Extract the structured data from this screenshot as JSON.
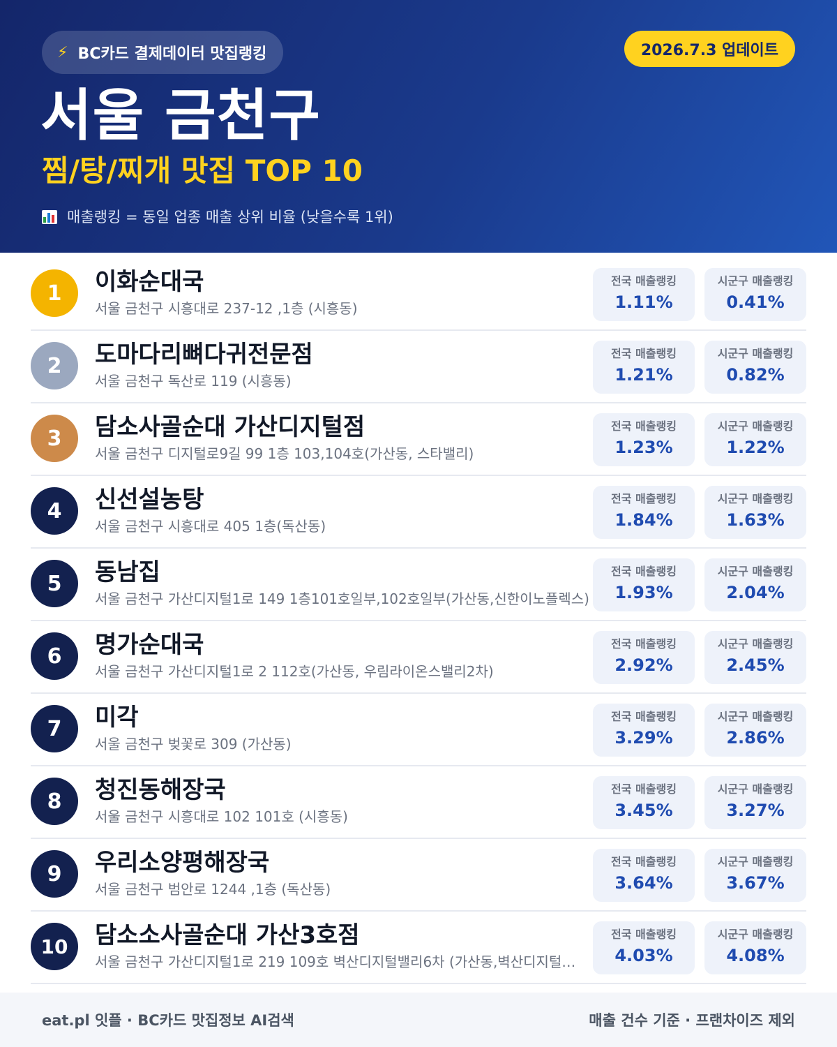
{
  "header": {
    "source_pill": "BC카드 결제데이터 맛집랭킹",
    "bolt_icon": "lightning-icon",
    "update": "2026.7.3 업데이트",
    "region": "서울 금천구",
    "subtitle": "찜/탕/찌개 맛집 TOP 10",
    "legend": "매출랭킹 = 동일 업종 매출 상위 비율 (낮을수록 1위)",
    "legend_icon": "bar-chart-icon"
  },
  "colors": {
    "accent_yellow": "#ffd21f",
    "navy": "#13214f",
    "gold": "#f4b400",
    "silver": "#9ba8bf",
    "bronze": "#cd8a4a",
    "value_blue": "#1f4bb0"
  },
  "restaurants": [
    {
      "rank": "1",
      "name": "이화순대국",
      "address": "서울 금천구 시흥대로 237-12 ,1층 (시흥동)",
      "national_label": "전국 매출랭킹",
      "national": "1.11%",
      "local_label": "시군구 매출랭킹",
      "local": "0.41%"
    },
    {
      "rank": "2",
      "name": "도마다리뼈다귀전문점",
      "address": "서울 금천구 독산로 119 (시흥동)",
      "national_label": "전국 매출랭킹",
      "national": "1.21%",
      "local_label": "시군구 매출랭킹",
      "local": "0.82%"
    },
    {
      "rank": "3",
      "name": "담소사골순대 가산디지털점",
      "address": "서울 금천구 디지털로9길 99 1층 103,104호(가산동, 스타밸리)",
      "national_label": "전국 매출랭킹",
      "national": "1.23%",
      "local_label": "시군구 매출랭킹",
      "local": "1.22%"
    },
    {
      "rank": "4",
      "name": "신선설농탕",
      "address": "서울 금천구 시흥대로 405 1층(독산동)",
      "national_label": "전국 매출랭킹",
      "national": "1.84%",
      "local_label": "시군구 매출랭킹",
      "local": "1.63%"
    },
    {
      "rank": "5",
      "name": "동남집",
      "address": "서울 금천구 가산디지털1로 149 1층101호일부,102호일부(가산동,신한이노플렉스)",
      "national_label": "전국 매출랭킹",
      "national": "1.93%",
      "local_label": "시군구 매출랭킹",
      "local": "2.04%"
    },
    {
      "rank": "6",
      "name": "명가순대국",
      "address": "서울 금천구 가산디지털1로 2 112호(가산동, 우림라이온스밸리2차)",
      "national_label": "전국 매출랭킹",
      "national": "2.92%",
      "local_label": "시군구 매출랭킹",
      "local": "2.45%"
    },
    {
      "rank": "7",
      "name": "미각",
      "address": "서울 금천구 벚꽃로 309 (가산동)",
      "national_label": "전국 매출랭킹",
      "national": "3.29%",
      "local_label": "시군구 매출랭킹",
      "local": "2.86%"
    },
    {
      "rank": "8",
      "name": "청진동해장국",
      "address": "서울 금천구 시흥대로 102 101호 (시흥동)",
      "national_label": "전국 매출랭킹",
      "national": "3.45%",
      "local_label": "시군구 매출랭킹",
      "local": "3.27%"
    },
    {
      "rank": "9",
      "name": "우리소양평해장국",
      "address": "서울 금천구 범안로 1244 ,1층 (독산동)",
      "national_label": "전국 매출랭킹",
      "national": "3.64%",
      "local_label": "시군구 매출랭킹",
      "local": "3.67%"
    },
    {
      "rank": "10",
      "name": "담소소사골순대 가산3호점",
      "address": "서울 금천구 가산디지털1로 219 109호 벽산디지털밸리6차 (가산동,벽산디지털…",
      "national_label": "전국 매출랭킹",
      "national": "4.03%",
      "local_label": "시군구 매출랭킹",
      "local": "4.08%"
    }
  ],
  "footer": {
    "left": "eat.pl 잇플 · BC카드 맛집정보 AI검색",
    "right": "매출 건수 기준 · 프랜차이즈 제외"
  }
}
